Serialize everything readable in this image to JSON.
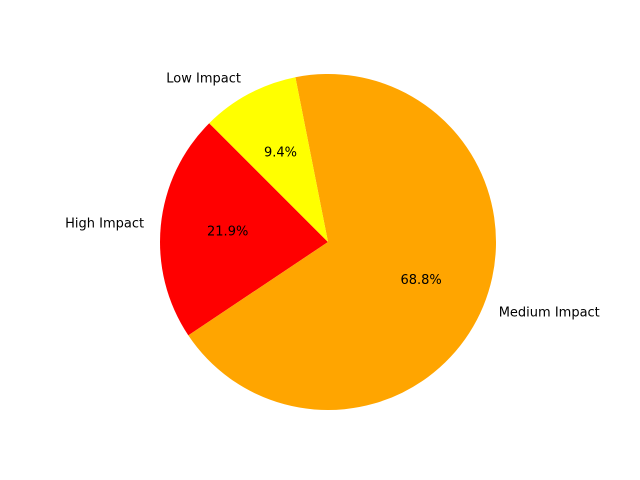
{
  "chart_data": {
    "type": "pie",
    "categories": [
      "High Impact",
      "Medium Impact",
      "Low Impact"
    ],
    "values": [
      21.9,
      68.8,
      9.4
    ],
    "value_labels": [
      "21.9%",
      "68.8%",
      "9.4%"
    ],
    "colors": [
      "#ff0000",
      "#ffa500",
      "#ffff00"
    ],
    "start_angle_deg": 135,
    "direction": "counterclockwise",
    "title": "",
    "legend": "none"
  }
}
